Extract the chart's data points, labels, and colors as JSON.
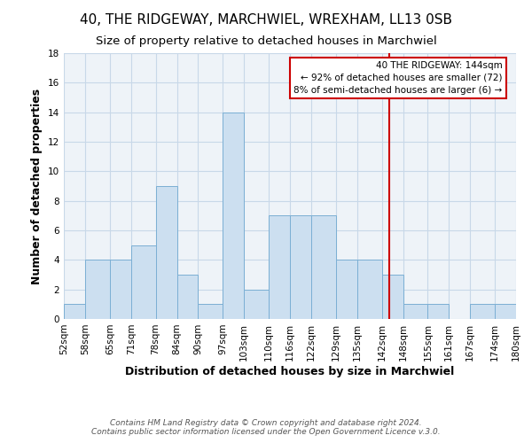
{
  "title": "40, THE RIDGEWAY, MARCHWIEL, WREXHAM, LL13 0SB",
  "subtitle": "Size of property relative to detached houses in Marchwiel",
  "xlabel": "Distribution of detached houses by size in Marchwiel",
  "ylabel": "Number of detached properties",
  "bin_edges": [
    52,
    58,
    65,
    71,
    78,
    84,
    90,
    97,
    103,
    110,
    116,
    122,
    129,
    135,
    142,
    148,
    155,
    161,
    167,
    174,
    180
  ],
  "bar_heights": [
    1,
    4,
    4,
    5,
    9,
    3,
    1,
    14,
    2,
    7,
    7,
    7,
    4,
    4,
    3,
    1,
    1,
    0,
    1,
    1
  ],
  "bar_color": "#ccdff0",
  "bar_edgecolor": "#7bafd4",
  "ylim": [
    0,
    18
  ],
  "yticks": [
    0,
    2,
    4,
    6,
    8,
    10,
    12,
    14,
    16,
    18
  ],
  "xtick_labels": [
    "52sqm",
    "58sqm",
    "65sqm",
    "71sqm",
    "78sqm",
    "84sqm",
    "90sqm",
    "97sqm",
    "103sqm",
    "110sqm",
    "116sqm",
    "122sqm",
    "129sqm",
    "135sqm",
    "142sqm",
    "148sqm",
    "155sqm",
    "161sqm",
    "167sqm",
    "174sqm",
    "180sqm"
  ],
  "reference_line_x": 144,
  "reference_line_color": "#cc0000",
  "annotation_title": "40 THE RIDGEWAY: 144sqm",
  "annotation_line1": "← 92% of detached houses are smaller (72)",
  "annotation_line2": "8% of semi-detached houses are larger (6) →",
  "annotation_box_color": "#ffffff",
  "annotation_box_edgecolor": "#cc0000",
  "footer1": "Contains HM Land Registry data © Crown copyright and database right 2024.",
  "footer2": "Contains public sector information licensed under the Open Government Licence v.3.0.",
  "background_color": "#ffffff",
  "plot_bg_color": "#eef3f8",
  "grid_color": "#c8d8e8",
  "title_fontsize": 11,
  "subtitle_fontsize": 9.5,
  "axis_label_fontsize": 9,
  "tick_fontsize": 7.5,
  "footer_fontsize": 6.5
}
